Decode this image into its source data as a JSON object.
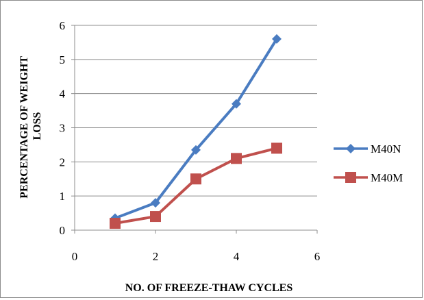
{
  "chart_data": {
    "type": "line",
    "title": "",
    "xlabel": "NO. OF FREEZE-THAW CYCLES",
    "ylabel_lines": [
      "PERCENTAGE OF WEIGHT",
      "LOSS"
    ],
    "xlim": [
      0,
      6
    ],
    "ylim": [
      0,
      6
    ],
    "xticks": [
      0,
      2,
      4,
      6
    ],
    "yticks": [
      0,
      1,
      2,
      3,
      4,
      5,
      6
    ],
    "grid": "horizontal",
    "legend_position": "right",
    "series": [
      {
        "name": "M40N",
        "color": "#4a7cc1",
        "marker": "diamond",
        "x": [
          1,
          2,
          3,
          4,
          5
        ],
        "y": [
          0.35,
          0.8,
          2.35,
          3.7,
          5.6
        ]
      },
      {
        "name": "M40M",
        "color": "#c0504d",
        "marker": "square",
        "x": [
          1,
          2,
          3,
          4,
          5
        ],
        "y": [
          0.2,
          0.4,
          1.5,
          2.1,
          2.4
        ]
      }
    ]
  }
}
